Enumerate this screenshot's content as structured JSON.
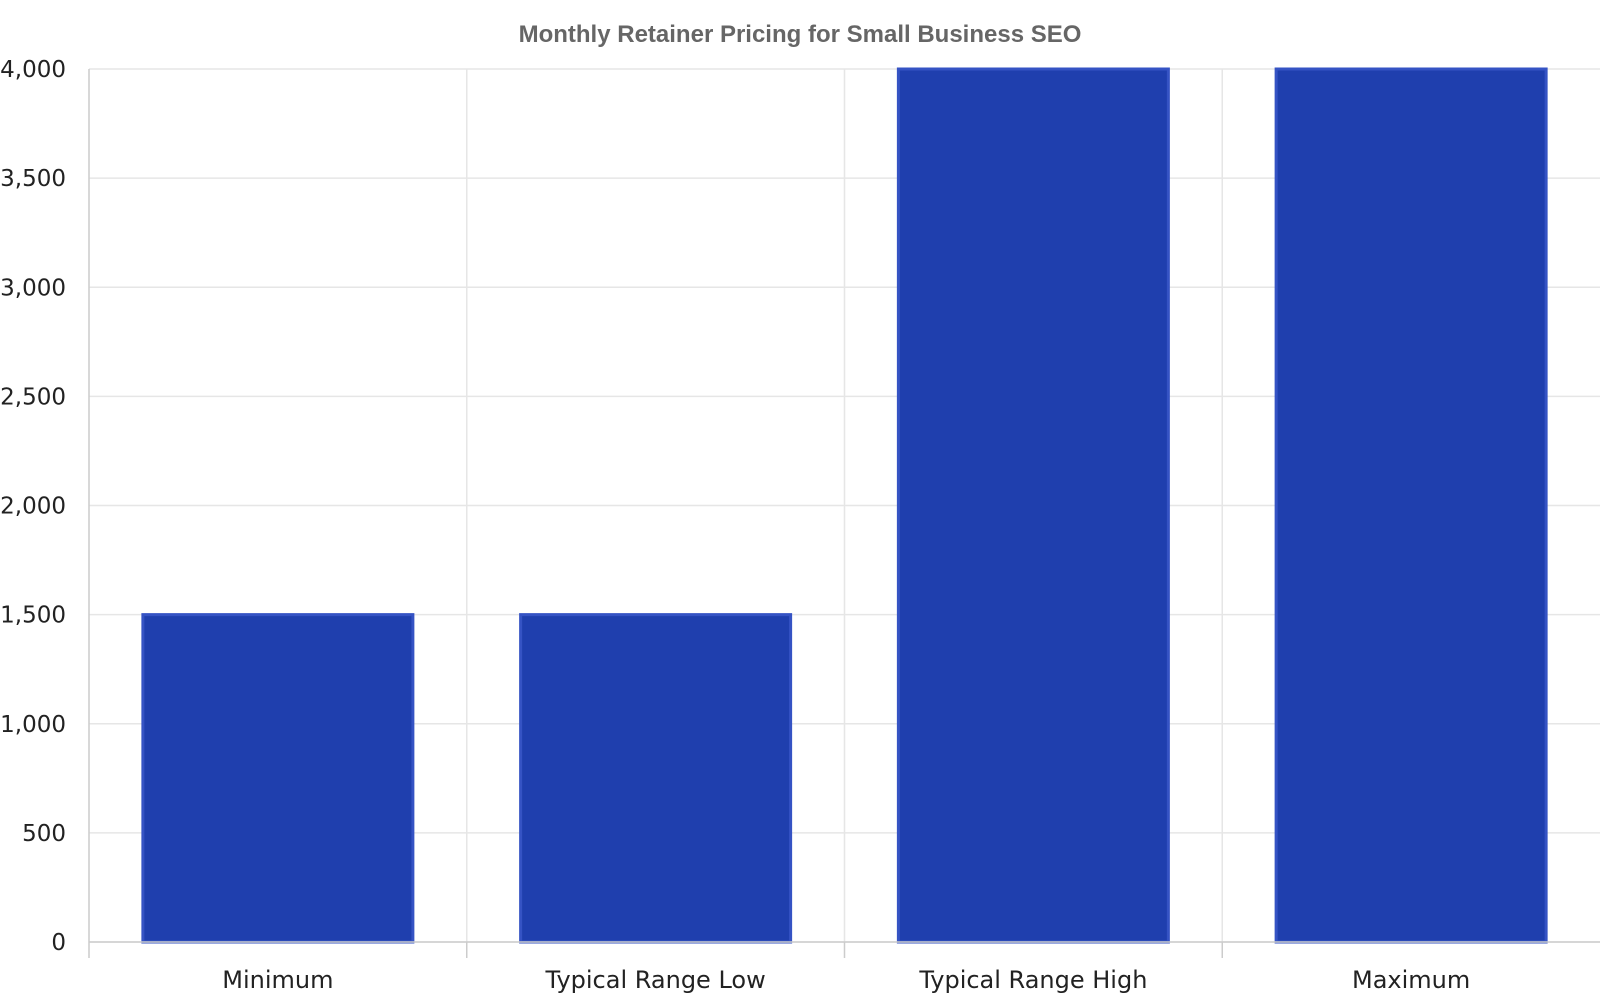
{
  "chart_data": {
    "type": "bar",
    "title": "Monthly Retainer Pricing for Small Business SEO",
    "xlabel": "",
    "ylabel": "",
    "categories": [
      "Minimum",
      "Typical Range Low",
      "Typical Range High",
      "Maximum"
    ],
    "values": [
      1500,
      1500,
      4000,
      4000
    ],
    "ylim": [
      0,
      4000
    ],
    "yticks": [
      0,
      500,
      1000,
      1500,
      2000,
      2500,
      3000,
      3500,
      4000
    ],
    "ytick_labels": [
      "0",
      "500",
      "1,000",
      "1,500",
      "2,000",
      "2,500",
      "3,000",
      "3,500",
      "4,000"
    ],
    "grid": true,
    "legend": "none",
    "colors": {
      "bar_fill": "#1f3fae",
      "bar_stroke": "#3553c4"
    }
  }
}
